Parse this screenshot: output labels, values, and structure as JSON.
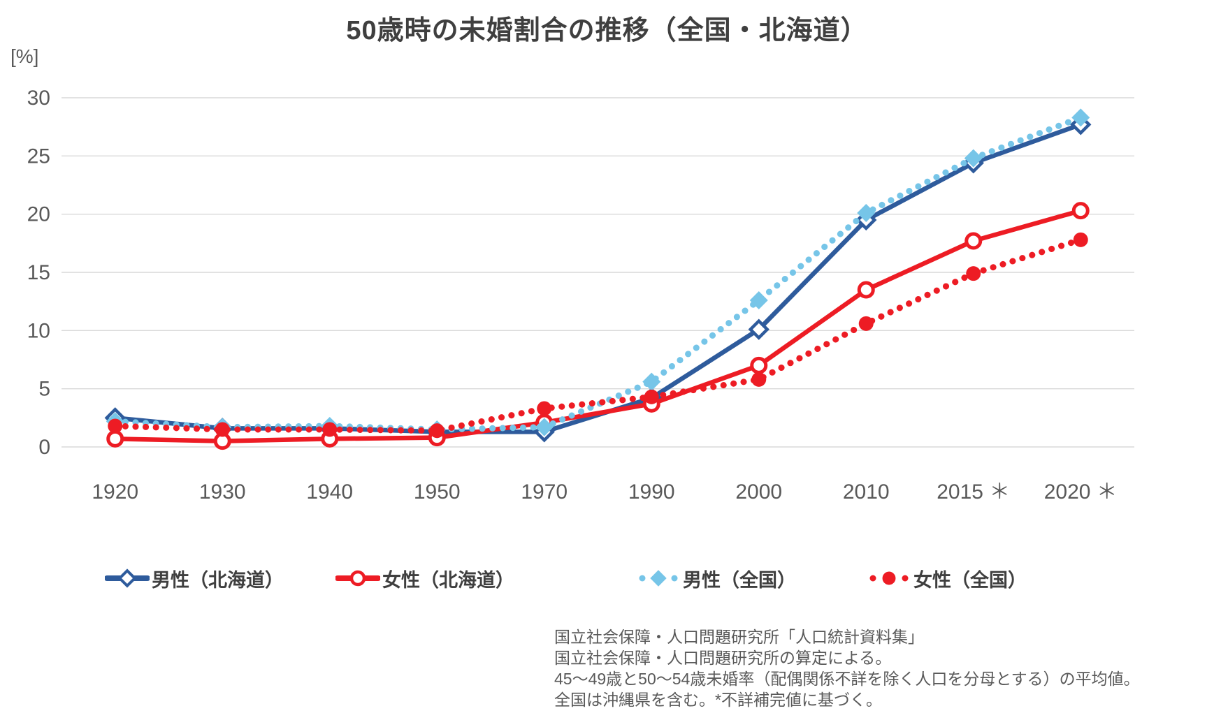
{
  "title": "50歳時の未婚割合の推移（全国・北海道）",
  "y_axis_unit": "[%]",
  "chart_data": {
    "type": "line",
    "categories": [
      "1920",
      "1930",
      "1940",
      "1950",
      "1970",
      "1990",
      "2000",
      "2010",
      "2015 ＊",
      "2020 ＊"
    ],
    "ylim": [
      0,
      30
    ],
    "ytick_step": 5,
    "grid": true,
    "grid_color": "#d9d9d9",
    "axis_text_color": "#595959",
    "legend_position": "bottom",
    "series": [
      {
        "name": "男性（北海道）",
        "region": "Hokkaido",
        "sex": "male",
        "color": "#2e5b9c",
        "style": "solid",
        "marker": "diamond-open",
        "values": [
          2.5,
          1.6,
          1.6,
          1.3,
          1.3,
          4.2,
          10.1,
          19.5,
          24.4,
          27.7
        ]
      },
      {
        "name": "女性（北海道）",
        "region": "Hokkaido",
        "sex": "female",
        "color": "#ed1c24",
        "style": "solid",
        "marker": "circle-open",
        "values": [
          0.7,
          0.5,
          0.7,
          0.8,
          2.1,
          3.7,
          7.0,
          13.5,
          17.7,
          20.3
        ]
      },
      {
        "name": "男性（全国）",
        "region": "National",
        "sex": "male",
        "color": "#76c5e8",
        "style": "dotted",
        "marker": "diamond-filled",
        "values": [
          2.2,
          1.7,
          1.8,
          1.5,
          1.7,
          5.6,
          12.6,
          20.1,
          24.8,
          28.3
        ]
      },
      {
        "name": "女性（全国）",
        "region": "National",
        "sex": "female",
        "color": "#ed1c24",
        "style": "dotted",
        "marker": "circle-filled",
        "values": [
          1.8,
          1.5,
          1.5,
          1.4,
          3.3,
          4.3,
          5.8,
          10.6,
          14.9,
          17.8
        ]
      }
    ]
  },
  "footnotes": {
    "line1": "国立社会保障・人口問題研究所「人口統計資料集」",
    "line2": "国立社会保障・人口問題研究所の算定による。",
    "line3": "45～49歳と50～54歳未婚率（配偶関係不詳を除く人口を分母とする）の平均値。",
    "line4": "全国は沖縄県を含む。*不詳補完値に基づく。"
  }
}
